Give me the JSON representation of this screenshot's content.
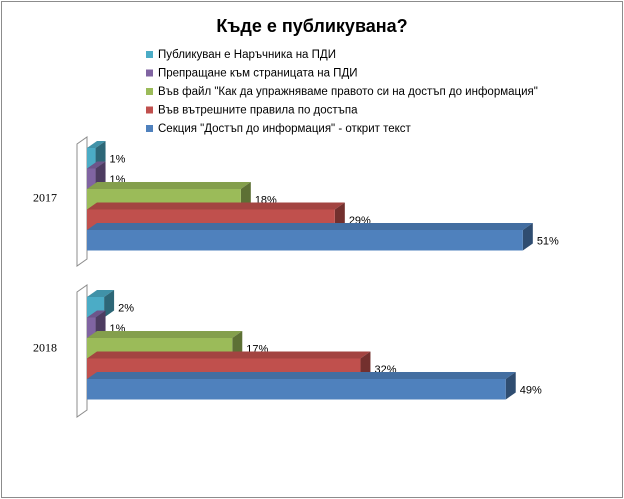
{
  "chart_data": {
    "type": "bar",
    "title": "Къде е публикувана?",
    "categories": [
      "2017",
      "2018"
    ],
    "series": [
      {
        "name": "Публикуван е Наръчника на ПДИ",
        "color": "#4bacc6",
        "values": [
          1,
          2
        ]
      },
      {
        "name": "Препращане към страницата на ПДИ",
        "color": "#8064a2",
        "values": [
          1,
          1
        ]
      },
      {
        "name": "Във файл \"Как да упражняваме правото си на достъп до информация\"",
        "color": "#9bbb59",
        "values": [
          18,
          17
        ]
      },
      {
        "name": "Във вътрешните правила по достъпа",
        "color": "#c0504d",
        "values": [
          29,
          32
        ]
      },
      {
        "name": "Секция \"Достъп до информация\" - открит текст",
        "color": "#4f81bd",
        "values": [
          51,
          49
        ]
      }
    ],
    "value_labels": [
      [
        "1%",
        "1%",
        "18%",
        "29%",
        "51%"
      ],
      [
        "2%",
        "1%",
        "17%",
        "32%",
        "49%"
      ]
    ],
    "orientation": "horizontal",
    "legend": "top",
    "grid": false,
    "xlim": [
      0,
      55
    ]
  }
}
